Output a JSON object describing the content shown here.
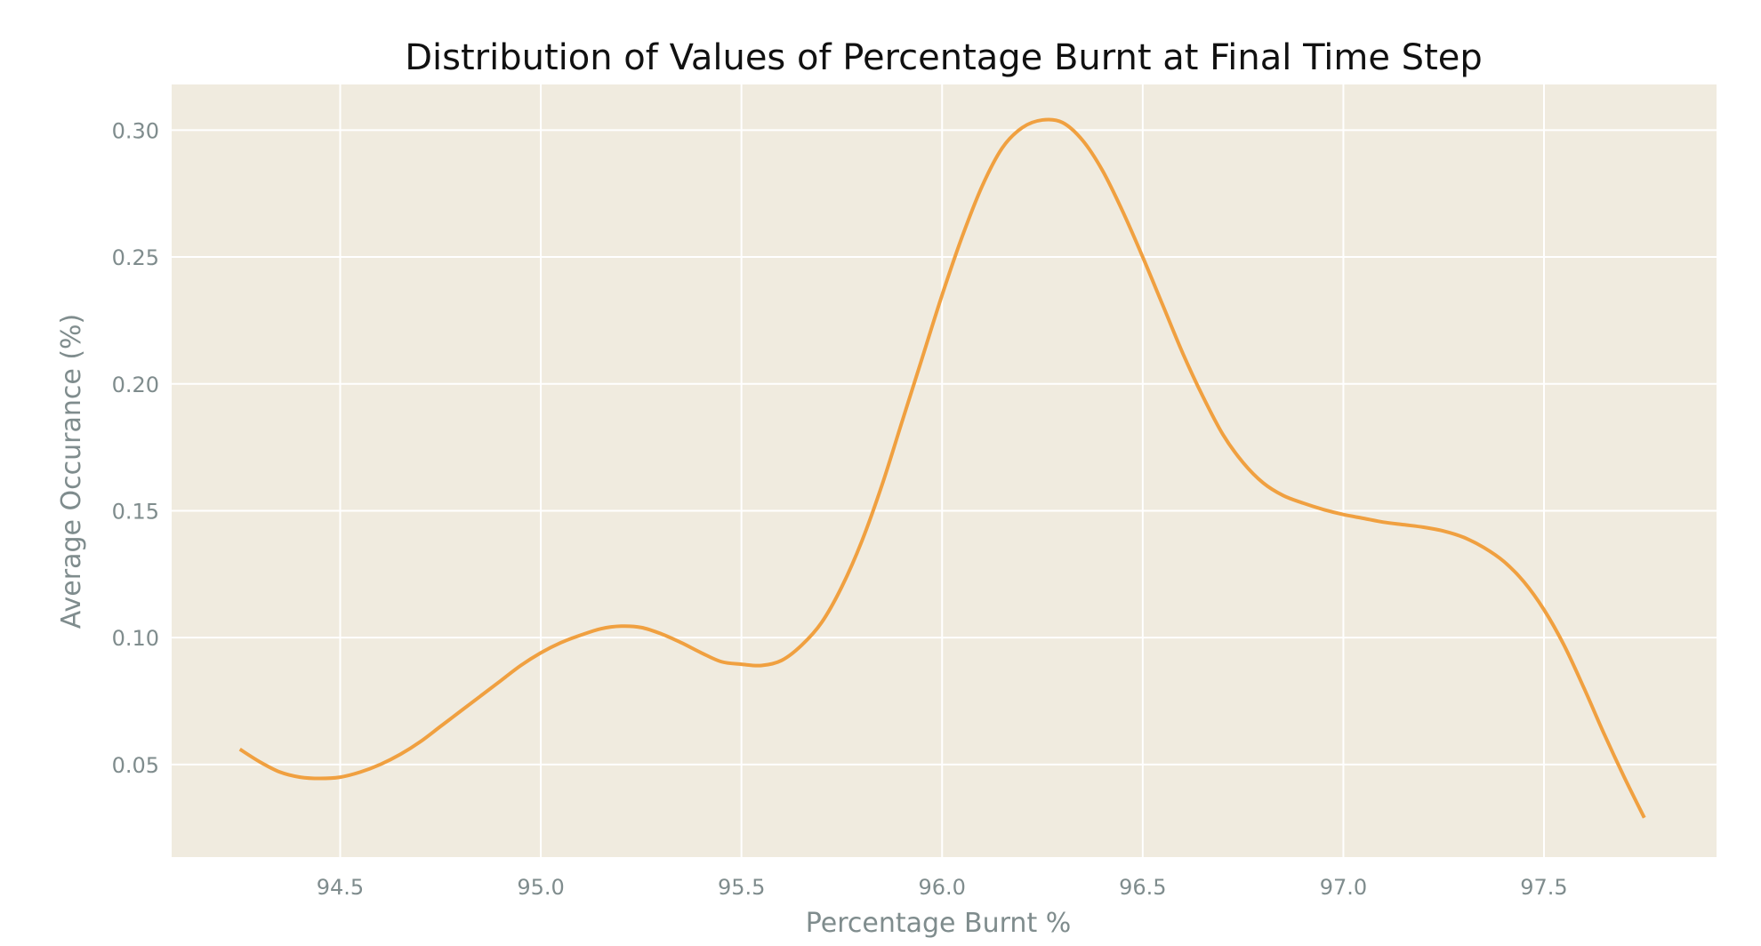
{
  "chart_data": {
    "type": "line",
    "title": "Distribution of Values of Percentage Burnt at Final Time Step",
    "xlabel": "Percentage Burnt %",
    "ylabel": "Average Occurance (%)",
    "xlim": [
      94.08,
      97.93
    ],
    "ylim": [
      0.0135,
      0.318
    ],
    "xticks": [
      94.5,
      95.0,
      95.5,
      96.0,
      96.5,
      97.0,
      97.5
    ],
    "xtick_labels": [
      "94.5",
      "95.0",
      "95.5",
      "96.0",
      "96.5",
      "97.0",
      "97.5"
    ],
    "yticks": [
      0.05,
      0.1,
      0.15,
      0.2,
      0.25,
      0.3
    ],
    "ytick_labels": [
      "0.05",
      "0.10",
      "0.15",
      "0.20",
      "0.25",
      "0.30"
    ],
    "grid": true,
    "background": "#f0ebdf",
    "grid_color": "#ffffff",
    "series": [
      {
        "color": "#f0a040",
        "x": [
          94.25,
          94.3,
          94.35,
          94.4,
          94.45,
          94.5,
          94.55,
          94.6,
          94.65,
          94.7,
          94.75,
          94.8,
          94.85,
          94.9,
          94.95,
          95.0,
          95.05,
          95.1,
          95.15,
          95.2,
          95.25,
          95.3,
          95.35,
          95.4,
          95.45,
          95.5,
          95.55,
          95.6,
          95.65,
          95.7,
          95.75,
          95.8,
          95.85,
          95.9,
          95.95,
          96.0,
          96.05,
          96.1,
          96.15,
          96.2,
          96.25,
          96.3,
          96.35,
          96.4,
          96.45,
          96.5,
          96.55,
          96.6,
          96.65,
          96.7,
          96.75,
          96.8,
          96.85,
          96.9,
          96.95,
          97.0,
          97.05,
          97.1,
          97.15,
          97.2,
          97.25,
          97.3,
          97.35,
          97.4,
          97.45,
          97.5,
          97.55,
          97.6,
          97.65,
          97.7,
          97.75
        ],
        "y": [
          0.056,
          0.051,
          0.047,
          0.045,
          0.0445,
          0.045,
          0.047,
          0.05,
          0.054,
          0.059,
          0.065,
          0.071,
          0.077,
          0.083,
          0.089,
          0.094,
          0.098,
          0.101,
          0.1035,
          0.1045,
          0.104,
          0.1015,
          0.098,
          0.094,
          0.0905,
          0.0895,
          0.089,
          0.091,
          0.097,
          0.106,
          0.12,
          0.138,
          0.16,
          0.185,
          0.21,
          0.235,
          0.258,
          0.278,
          0.293,
          0.301,
          0.304,
          0.303,
          0.296,
          0.284,
          0.268,
          0.25,
          0.231,
          0.212,
          0.195,
          0.18,
          0.169,
          0.161,
          0.156,
          0.153,
          0.1505,
          0.1485,
          0.147,
          0.1455,
          0.1445,
          0.1435,
          0.142,
          0.1395,
          0.1355,
          0.13,
          0.122,
          0.111,
          0.097,
          0.08,
          0.062,
          0.045,
          0.029
        ]
      }
    ]
  }
}
